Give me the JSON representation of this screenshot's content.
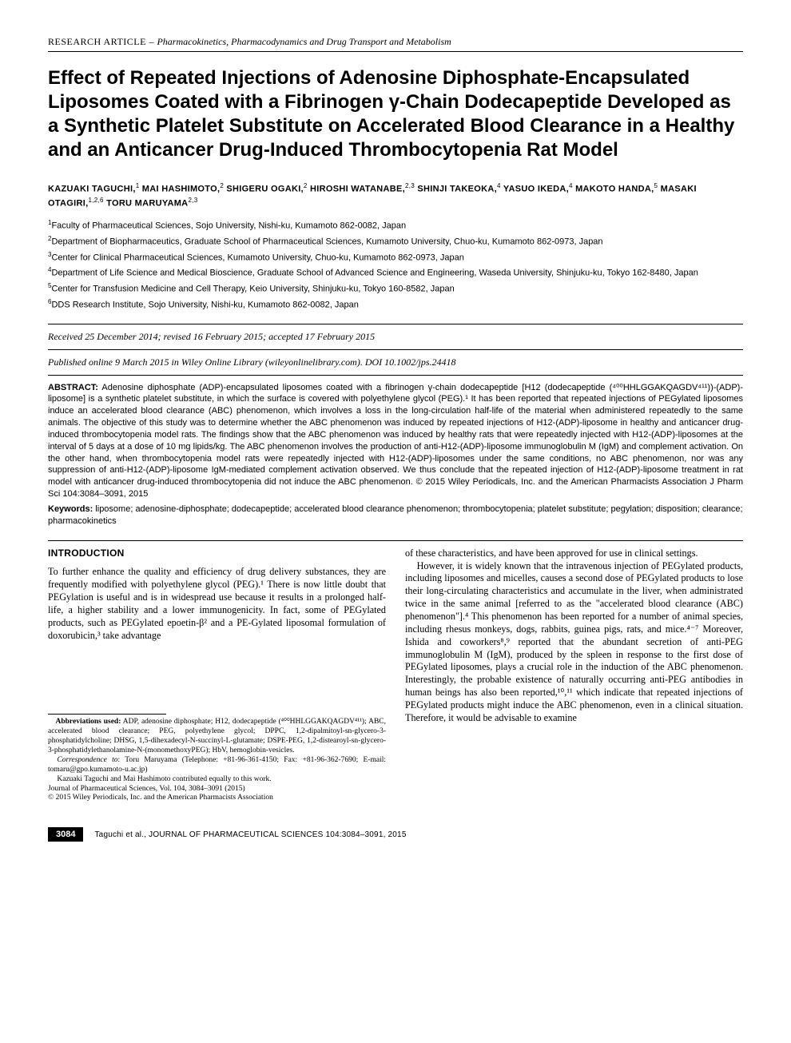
{
  "header": {
    "prefix": "RESEARCH ARTICLE – ",
    "category": "Pharmacokinetics, Pharmacodynamics and Drug Transport and Metabolism"
  },
  "title": "Effect of Repeated Injections of Adenosine Diphosphate-Encapsulated Liposomes Coated with a Fibrinogen γ-Chain Dodecapeptide Developed as a Synthetic Platelet Substitute on Accelerated Blood Clearance in a Healthy and an Anticancer Drug-Induced Thrombocytopenia Rat Model",
  "authors_html": "KAZUAKI TAGUCHI,<sup>1</sup> MAI HASHIMOTO,<sup>2</sup> SHIGERU OGAKI,<sup>2</sup> HIROSHI WATANABE,<sup>2,3</sup> SHINJI TAKEOKA,<sup>4</sup> YASUO IKEDA,<sup>4</sup> MAKOTO HANDA,<sup>5</sup> MASAKI OTAGIRI,<sup>1,2,6</sup> TORU MARUYAMA<sup>2,3</sup>",
  "affiliations": [
    "<sup>1</sup>Faculty of Pharmaceutical Sciences, Sojo University, Nishi-ku, Kumamoto 862-0082, Japan",
    "<sup>2</sup>Department of Biopharmaceutics, Graduate School of Pharmaceutical Sciences, Kumamoto University, Chuo-ku, Kumamoto 862-0973, Japan",
    "<sup>3</sup>Center for Clinical Pharmaceutical Sciences, Kumamoto University, Chuo-ku, Kumamoto 862-0973, Japan",
    "<sup>4</sup>Department of Life Science and Medical Bioscience, Graduate School of Advanced Science and Engineering, Waseda University, Shinjuku-ku, Tokyo 162-8480, Japan",
    "<sup>5</sup>Center for Transfusion Medicine and Cell Therapy, Keio University, Shinjuku-ku, Tokyo 160-8582, Japan",
    "<sup>6</sup>DDS Research Institute, Sojo University, Nishi-ku, Kumamoto 862-0082, Japan"
  ],
  "dates": "Received 25 December 2014; revised 16 February 2015; accepted 17 February 2015",
  "published": "Published online 9 March 2015 in Wiley Online Library (wileyonlinelibrary.com). DOI 10.1002/jps.24418",
  "abstract_label": "ABSTRACT:",
  "abstract_text": " Adenosine diphosphate (ADP)-encapsulated liposomes coated with a fibrinogen γ-chain dodecapeptide [H12 (dodecapeptide (⁴⁰⁰HHLGGAKQAGDV⁴¹¹))-(ADP)-liposome] is a synthetic platelet substitute, in which the surface is covered with polyethylene glycol (PEG).¹ It has been reported that repeated injections of PEGylated liposomes induce an accelerated blood clearance (ABC) phenomenon, which involves a loss in the long-circulation half-life of the material when administered repeatedly to the same animals. The objective of this study was to determine whether the ABC phenomenon was induced by repeated injections of H12-(ADP)-liposome in healthy and anticancer drug-induced thrombocytopenia model rats. The findings show that the ABC phenomenon was induced by healthy rats that were repeatedly injected with H12-(ADP)-liposomes at the interval of 5 days at a dose of 10 mg lipids/kg. The ABC phenomenon involves the production of anti-H12-(ADP)-liposome immunoglobulin M (IgM) and complement activation. On the other hand, when thrombocytopenia model rats were repeatedly injected with H12-(ADP)-liposomes under the same conditions, no ABC phenomenon, nor was any suppression of anti-H12-(ADP)-liposome IgM-mediated complement activation observed. We thus conclude that the repeated injection of H12-(ADP)-liposome treatment in rat model with anticancer drug-induced thrombocytopenia did not induce the ABC phenomenon. © 2015 Wiley Periodicals, Inc. and the American Pharmacists Association J Pharm Sci 104:3084–3091, 2015",
  "keywords_label": "Keywords:",
  "keywords_text": " liposome; adenosine-diphosphate; dodecapeptide; accelerated blood clearance phenomenon; thrombocytopenia; platelet substitute; pegylation; disposition; clearance; pharmacokinetics",
  "intro_heading": "INTRODUCTION",
  "intro_p1": "To further enhance the quality and efficiency of drug delivery substances, they are frequently modified with polyethylene glycol (PEG).¹ There is now little doubt that PEGylation is useful and is in widespread use because it results in a prolonged half-life, a higher stability and a lower immunogenicity. In fact, some of PEGylated products, such as PEGylated epoetin-β² and a PE-Gylated liposomal formulation of doxorubicin,³ take advantage",
  "intro_p2": "of these characteristics, and have been approved for use in clinical settings.",
  "intro_p3": "However, it is widely known that the intravenous injection of PEGylated products, including liposomes and micelles, causes a second dose of PEGylated products to lose their long-circulating characteristics and accumulate in the liver, when administrated twice in the same animal [referred to as the \"accelerated blood clearance (ABC) phenomenon\"].⁴ This phenomenon has been reported for a number of animal species, including rhesus monkeys, dogs, rabbits, guinea pigs, rats, and mice.⁴⁻⁷ Moreover, Ishida and coworkers⁸,⁹ reported that the abundant secretion of anti-PEG immunoglobulin M (IgM), produced by the spleen in response to the first dose of PEGylated liposomes, plays a crucial role in the induction of the ABC phenomenon. Interestingly, the probable existence of naturally occurring anti-PEG antibodies in human beings has also been reported,¹⁰,¹¹ which indicate that repeated injections of PEGylated products might induce the ABC phenomenon, even in a clinical situation. Therefore, it would be advisable to examine",
  "footnotes": {
    "abbrev_label": "Abbreviations used:",
    "abbrev_text": " ADP, adenosine diphosphate; H12, dodecapeptide (⁴⁰⁰HHLGGAKQAGDV⁴¹¹); ABC, accelerated blood clearance; PEG, polyethylene glycol; DPPC, 1,2-dipalmitoyl-sn-glycero-3-phosphatidylcholine; DHSG, 1,5-dihexadecyl-N-succinyl-L-glutamate; DSPE-PEG, 1,2-distearoyl-sn-glycero-3-phosphatidylethanolamine-N-(monomethoxyPEG); HbV, hemoglobin-vesicles.",
    "corr_label": "Correspondence to",
    "corr_text": ": Toru Maruyama (Telephone: +81-96-361-4150; Fax: +81-96-362-7690; E-mail: tomaru@gpo.kumamoto-u.ac.jp)",
    "contrib": "Kazuaki Taguchi and Mai Hashimoto contributed equally to this work.",
    "journal": "Journal of Pharmaceutical Sciences, Vol. 104, 3084–3091 (2015)",
    "copyright": "© 2015 Wiley Periodicals, Inc. and the American Pharmacists Association"
  },
  "footer": {
    "page": "3084",
    "text": "Taguchi et al., JOURNAL OF PHARMACEUTICAL SCIENCES 104:3084–3091, 2015"
  }
}
